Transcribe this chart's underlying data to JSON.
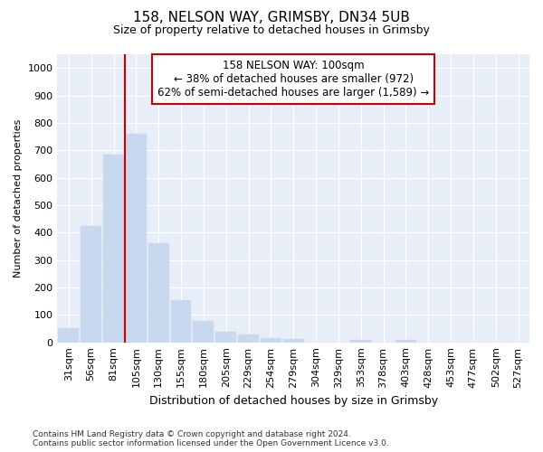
{
  "title1": "158, NELSON WAY, GRIMSBY, DN34 5UB",
  "title2": "Size of property relative to detached houses in Grimsby",
  "xlabel": "Distribution of detached houses by size in Grimsby",
  "ylabel": "Number of detached properties",
  "categories": [
    "31sqm",
    "56sqm",
    "81sqm",
    "105sqm",
    "130sqm",
    "155sqm",
    "180sqm",
    "205sqm",
    "229sqm",
    "254sqm",
    "279sqm",
    "304sqm",
    "329sqm",
    "353sqm",
    "378sqm",
    "403sqm",
    "428sqm",
    "453sqm",
    "477sqm",
    "502sqm",
    "527sqm"
  ],
  "values": [
    52,
    425,
    685,
    760,
    362,
    153,
    77,
    40,
    30,
    15,
    12,
    0,
    0,
    10,
    0,
    10,
    0,
    0,
    0,
    0,
    0
  ],
  "bar_color": "#c8d8ee",
  "bar_edge_color": "#c8d8ee",
  "vline_color": "#cc0000",
  "annotation_text": "158 NELSON WAY: 100sqm\n← 38% of detached houses are smaller (972)\n62% of semi-detached houses are larger (1,589) →",
  "annotation_box_facecolor": "#ffffff",
  "annotation_box_edge": "#cc0000",
  "ylim": [
    0,
    1050
  ],
  "yticks": [
    0,
    100,
    200,
    300,
    400,
    500,
    600,
    700,
    800,
    900,
    1000
  ],
  "bg_color": "#ffffff",
  "plot_bg_color": "#e8eef8",
  "footnote": "Contains HM Land Registry data © Crown copyright and database right 2024.\nContains public sector information licensed under the Open Government Licence v3.0.",
  "title1_fontsize": 11,
  "title2_fontsize": 9,
  "xlabel_fontsize": 9,
  "ylabel_fontsize": 8,
  "annotation_fontsize": 8.5,
  "tick_fontsize": 8,
  "footnote_fontsize": 6.5
}
